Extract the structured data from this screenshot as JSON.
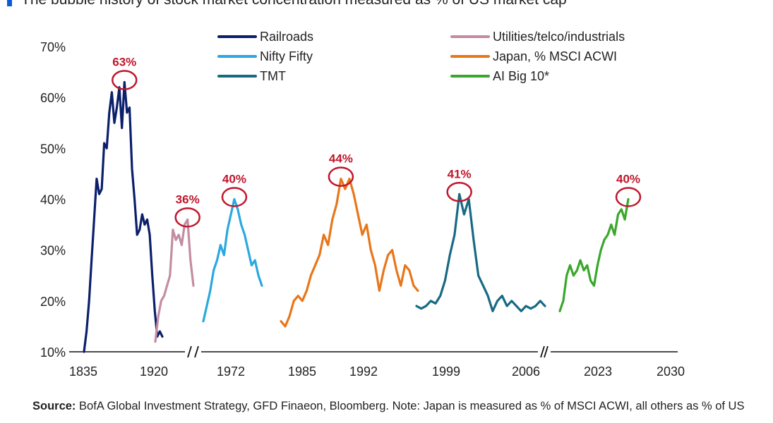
{
  "title": "The bubble history of stock market concentration measured as % of US market cap",
  "source": {
    "label": "Source:",
    "text": "BofA Global Investment Strategy, GFD Finaeon, Bloomberg. Note: Japan is measured as % of MSCI ACWI, all others as % of US"
  },
  "chart_data": {
    "type": "line",
    "title": "The bubble history of stock market concentration measured as % of US market cap",
    "xlabel": "",
    "ylabel": "",
    "ylim": [
      10,
      70
    ],
    "yticks": [
      "10%",
      "20%",
      "30%",
      "40%",
      "50%",
      "60%",
      "70%"
    ],
    "xticks": [
      "1835",
      "1920",
      "1972",
      "1985",
      "1992",
      "1999",
      "2006",
      "2023",
      "2030"
    ],
    "axis_breaks": [
      "between 1920 and 1972",
      "between 2006 and 2023"
    ],
    "legend_position": "top",
    "grid": false,
    "series": [
      {
        "name": "Railroads",
        "color": "#0b1f6b",
        "values": [
          10,
          14,
          20,
          28,
          36,
          44,
          41,
          42,
          51,
          50,
          57,
          61,
          55,
          58,
          62,
          54,
          63,
          57,
          58,
          46,
          40,
          33,
          34,
          37,
          35,
          36,
          33,
          25,
          18,
          13,
          14,
          13
        ]
      },
      {
        "name": "Utilities/telco/industrials",
        "color": "#c38ca2",
        "values": [
          12,
          17,
          20,
          21,
          23,
          25,
          34,
          32,
          33,
          31,
          35,
          36,
          28,
          23
        ]
      },
      {
        "name": "Nifty Fifty",
        "color": "#2aa8e0",
        "values": [
          16,
          19,
          22,
          26,
          28,
          31,
          29,
          34,
          37,
          40,
          38,
          35,
          33,
          30,
          27,
          28,
          25,
          23
        ]
      },
      {
        "name": "Japan, % MSCI ACWI",
        "color": "#e8761a",
        "values": [
          16,
          15,
          17,
          20,
          21,
          20,
          22,
          25,
          27,
          29,
          33,
          31,
          36,
          39,
          44,
          42,
          44,
          41,
          37,
          33,
          35,
          30,
          27,
          22,
          26,
          29,
          30,
          26,
          23,
          27,
          26,
          23,
          22
        ]
      },
      {
        "name": "TMT",
        "color": "#176a84",
        "values": [
          19,
          18.5,
          19,
          20,
          19.5,
          21,
          24,
          29,
          33,
          41,
          37,
          40,
          32,
          25,
          23,
          21,
          18,
          20,
          21,
          19,
          20,
          19,
          18,
          19,
          18.5,
          19,
          20,
          19
        ]
      },
      {
        "name": "AI Big 10*",
        "color": "#39a82a",
        "values": [
          18,
          20,
          25,
          27,
          25,
          26,
          28,
          26,
          27,
          24,
          23,
          27,
          30,
          32,
          33,
          35,
          33,
          37,
          38,
          36,
          40
        ]
      }
    ],
    "annotations": [
      {
        "label": "63%",
        "series": "Railroads",
        "value": 63
      },
      {
        "label": "36%",
        "series": "Utilities/telco/industrials",
        "value": 36
      },
      {
        "label": "40%",
        "series": "Nifty Fifty",
        "value": 40
      },
      {
        "label": "44%",
        "series": "Japan, % MSCI ACWI",
        "value": 44
      },
      {
        "label": "41%",
        "series": "TMT",
        "value": 41
      },
      {
        "label": "40%",
        "series": "AI Big 10*",
        "value": 40
      }
    ],
    "annotation_color": "#c0162c"
  }
}
